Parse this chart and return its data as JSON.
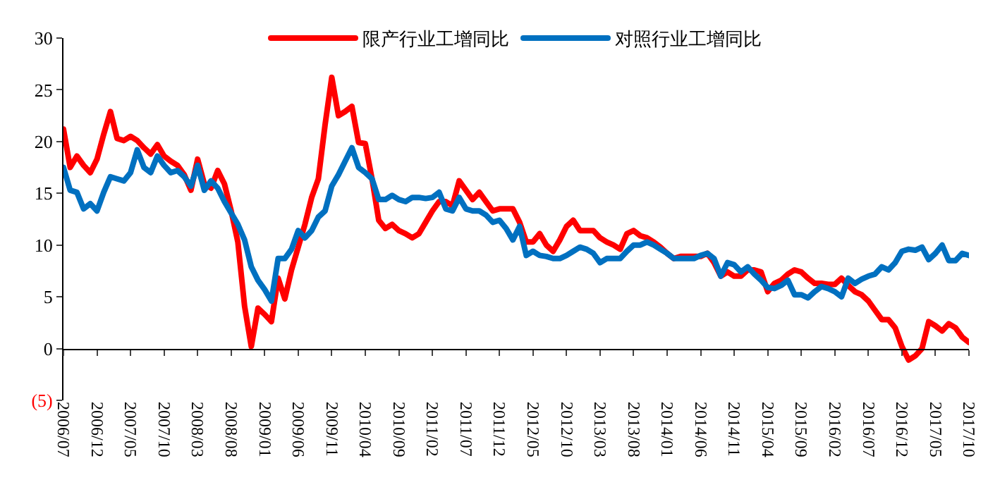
{
  "chart_data": {
    "type": "line",
    "categories": [
      "2006/07",
      null,
      null,
      null,
      null,
      "2006/12",
      null,
      null,
      null,
      null,
      "2007/05",
      null,
      null,
      null,
      null,
      "2007/10",
      null,
      null,
      null,
      null,
      "2008/03",
      null,
      null,
      null,
      null,
      "2008/08",
      null,
      null,
      null,
      null,
      "2009/01",
      null,
      null,
      null,
      null,
      "2009/06",
      null,
      null,
      null,
      null,
      "2009/11",
      null,
      null,
      null,
      null,
      "2010/04",
      null,
      null,
      null,
      null,
      "2010/09",
      null,
      null,
      null,
      null,
      "2011/02",
      null,
      null,
      null,
      null,
      "2011/07",
      null,
      null,
      null,
      null,
      "2011/12",
      null,
      null,
      null,
      null,
      "2012/05",
      null,
      null,
      null,
      null,
      "2012/10",
      null,
      null,
      null,
      null,
      "2013/03",
      null,
      null,
      null,
      null,
      "2013/08",
      null,
      null,
      null,
      null,
      "2014/01",
      null,
      null,
      null,
      null,
      "2014/06",
      null,
      null,
      null,
      null,
      "2014/11",
      null,
      null,
      null,
      null,
      "2015/04",
      null,
      null,
      null,
      null,
      "2015/09",
      null,
      null,
      null,
      null,
      "2016/02",
      null,
      null,
      null,
      null,
      "2016/07",
      null,
      null,
      null,
      null,
      "2016/12",
      null,
      null,
      null,
      null,
      "2017/05",
      null,
      null,
      null,
      null,
      "2017/10"
    ],
    "series": [
      {
        "name": "限产行业工增同比",
        "color": "#ff0000",
        "values": [
          21.2,
          17.5,
          18.6,
          17.7,
          17.0,
          18.3,
          20.7,
          22.9,
          20.3,
          20.1,
          20.5,
          20.1,
          19.4,
          18.8,
          19.7,
          18.6,
          18.1,
          17.7,
          16.8,
          15.3,
          18.3,
          15.9,
          15.5,
          17.2,
          15.9,
          13.3,
          10.3,
          4.1,
          0.2,
          3.9,
          3.3,
          2.6,
          6.8,
          4.8,
          7.6,
          9.8,
          12.0,
          14.6,
          16.4,
          21.6,
          26.2,
          22.5,
          22.9,
          23.4,
          19.9,
          19.8,
          16.4,
          12.4,
          11.6,
          12.0,
          11.4,
          11.1,
          10.7,
          11.1,
          12.2,
          13.3,
          14.2,
          14.2,
          13.8,
          16.2,
          15.3,
          14.4,
          15.1,
          14.2,
          13.3,
          13.5,
          13.5,
          13.5,
          12.2,
          10.3,
          10.3,
          11.1,
          10.0,
          9.4,
          10.5,
          11.8,
          12.4,
          11.4,
          11.4,
          11.4,
          10.7,
          10.3,
          10.0,
          9.6,
          11.1,
          11.4,
          10.9,
          10.7,
          10.3,
          9.8,
          9.2,
          8.7,
          8.9,
          8.9,
          8.9,
          8.9,
          9.2,
          8.3,
          7.0,
          7.4,
          7.0,
          7.0,
          7.6,
          7.6,
          7.4,
          5.5,
          6.3,
          6.6,
          7.2,
          7.6,
          7.4,
          6.8,
          6.3,
          6.3,
          6.2,
          6.2,
          6.8,
          6.1,
          5.5,
          5.2,
          4.6,
          3.7,
          2.8,
          2.8,
          2.0,
          0.2,
          -1.1,
          -0.7,
          0.0,
          2.6,
          2.2,
          1.7,
          2.4,
          2.0,
          1.1,
          0.6
        ]
      },
      {
        "name": "对照行业工增同比",
        "color": "#0070c0",
        "values": [
          17.5,
          15.3,
          15.1,
          13.5,
          14.0,
          13.3,
          15.1,
          16.6,
          16.4,
          16.2,
          17.0,
          19.2,
          17.5,
          17.0,
          18.6,
          17.7,
          17.0,
          17.2,
          16.6,
          15.7,
          17.7,
          15.3,
          16.2,
          15.5,
          14.2,
          13.1,
          12.0,
          10.5,
          7.9,
          6.6,
          5.7,
          4.6,
          8.7,
          8.7,
          9.6,
          11.4,
          10.7,
          11.4,
          12.7,
          13.3,
          15.7,
          16.8,
          18.1,
          19.4,
          17.5,
          17.0,
          16.4,
          14.4,
          14.4,
          14.8,
          14.4,
          14.2,
          14.6,
          14.6,
          14.5,
          14.6,
          15.1,
          13.5,
          13.3,
          14.6,
          13.5,
          13.3,
          13.3,
          12.9,
          12.2,
          12.4,
          11.6,
          10.5,
          11.8,
          9.0,
          9.4,
          9.0,
          8.9,
          8.7,
          8.7,
          9.0,
          9.4,
          9.8,
          9.6,
          9.2,
          8.3,
          8.7,
          8.7,
          8.7,
          9.4,
          10.0,
          10.0,
          10.3,
          10.0,
          9.6,
          9.2,
          8.7,
          8.7,
          8.7,
          8.7,
          9.0,
          9.2,
          8.7,
          7.0,
          8.3,
          8.1,
          7.4,
          7.9,
          7.2,
          6.6,
          5.9,
          5.8,
          6.1,
          6.6,
          5.2,
          5.2,
          4.9,
          5.5,
          6.0,
          5.8,
          5.5,
          5.0,
          6.8,
          6.3,
          6.7,
          7.0,
          7.2,
          7.9,
          7.6,
          8.3,
          9.4,
          9.6,
          9.5,
          9.8,
          8.6,
          9.2,
          10.0,
          8.5,
          8.5,
          9.2,
          9.0
        ]
      }
    ],
    "ylim": [
      -5,
      30
    ],
    "yticks": [
      {
        "value": -5,
        "label": "(5)"
      },
      0,
      5,
      10,
      15,
      20,
      25,
      30
    ],
    "legend": "top",
    "marker": "none",
    "line_style": "solid"
  }
}
